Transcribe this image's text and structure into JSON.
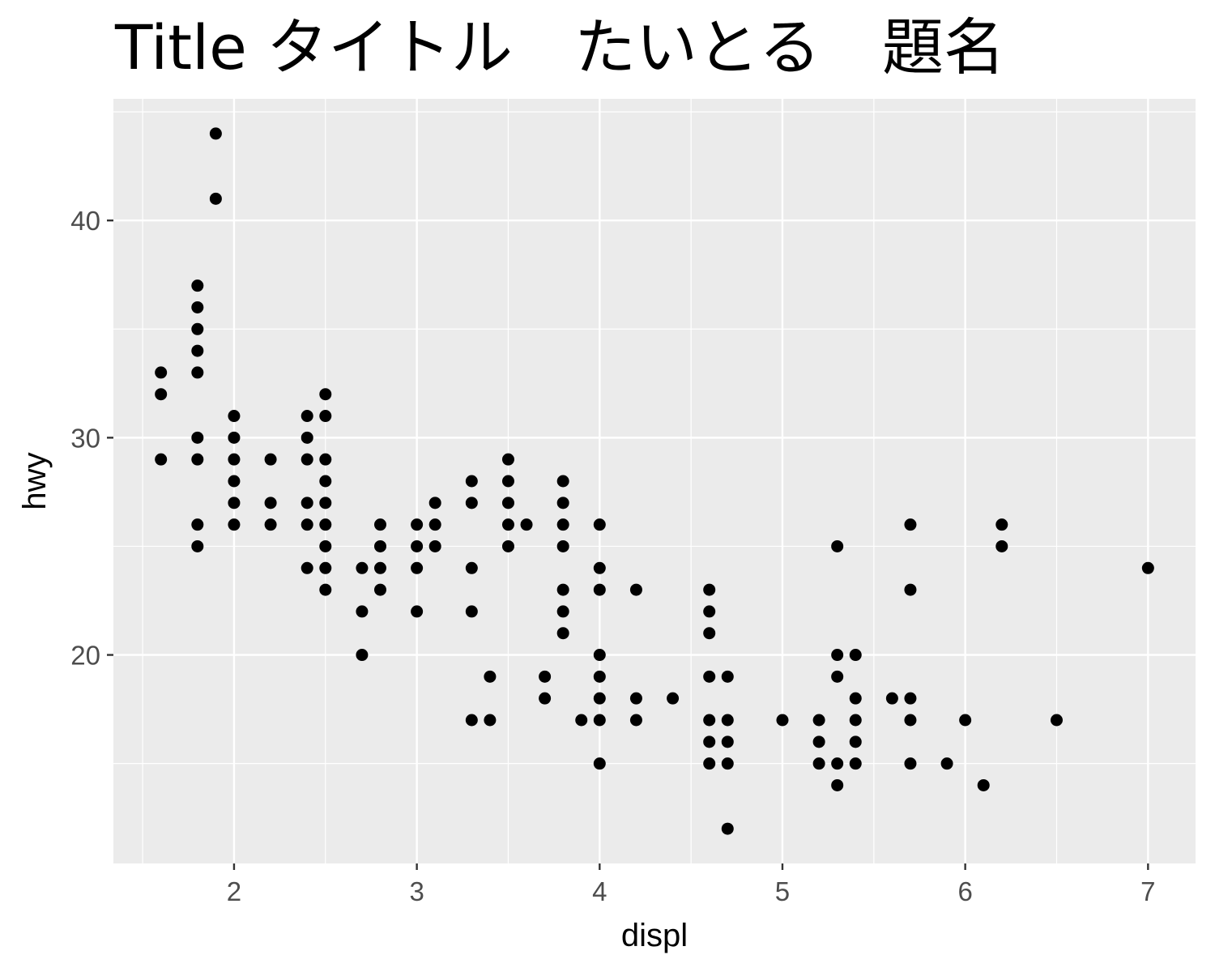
{
  "chart_data": {
    "type": "scatter",
    "title": "Title タイトル　たいとる　題名",
    "xlabel": "displ",
    "ylabel": "hwy",
    "xlim": [
      1.34,
      7.26
    ],
    "ylim": [
      10.4,
      45.6
    ],
    "x_ticks": [
      2,
      3,
      4,
      5,
      6,
      7
    ],
    "y_ticks": [
      20,
      30,
      40
    ],
    "x_tick_labels": [
      "2",
      "3",
      "4",
      "5",
      "6",
      "7"
    ],
    "y_tick_labels": [
      "20",
      "30",
      "40"
    ],
    "grid": true,
    "legend": "none",
    "colors": {
      "panel": "#ebebeb",
      "grid": "#ffffff",
      "point": "#000000",
      "tick_text": "#4d4d4d"
    },
    "points": [
      [
        1.6,
        33
      ],
      [
        1.6,
        32
      ],
      [
        1.6,
        29
      ],
      [
        1.8,
        37
      ],
      [
        1.8,
        36
      ],
      [
        1.8,
        35
      ],
      [
        1.8,
        34
      ],
      [
        1.8,
        33
      ],
      [
        1.8,
        30
      ],
      [
        1.8,
        29
      ],
      [
        1.8,
        26
      ],
      [
        1.8,
        25
      ],
      [
        1.9,
        44
      ],
      [
        1.9,
        41
      ],
      [
        2.0,
        31
      ],
      [
        2.0,
        30
      ],
      [
        2.0,
        29
      ],
      [
        2.0,
        28
      ],
      [
        2.0,
        27
      ],
      [
        2.0,
        26
      ],
      [
        2.2,
        29
      ],
      [
        2.2,
        27
      ],
      [
        2.2,
        26
      ],
      [
        2.4,
        31
      ],
      [
        2.4,
        30
      ],
      [
        2.4,
        29
      ],
      [
        2.4,
        27
      ],
      [
        2.4,
        26
      ],
      [
        2.4,
        24
      ],
      [
        2.5,
        32
      ],
      [
        2.5,
        31
      ],
      [
        2.5,
        29
      ],
      [
        2.5,
        28
      ],
      [
        2.5,
        27
      ],
      [
        2.5,
        26
      ],
      [
        2.5,
        25
      ],
      [
        2.5,
        24
      ],
      [
        2.5,
        23
      ],
      [
        2.7,
        24
      ],
      [
        2.7,
        22
      ],
      [
        2.7,
        20
      ],
      [
        2.8,
        26
      ],
      [
        2.8,
        25
      ],
      [
        2.8,
        24
      ],
      [
        2.8,
        23
      ],
      [
        3.0,
        26
      ],
      [
        3.0,
        25
      ],
      [
        3.0,
        24
      ],
      [
        3.0,
        22
      ],
      [
        3.1,
        27
      ],
      [
        3.1,
        26
      ],
      [
        3.1,
        25
      ],
      [
        3.3,
        28
      ],
      [
        3.3,
        27
      ],
      [
        3.3,
        24
      ],
      [
        3.3,
        22
      ],
      [
        3.3,
        17
      ],
      [
        3.4,
        19
      ],
      [
        3.4,
        17
      ],
      [
        3.5,
        29
      ],
      [
        3.5,
        28
      ],
      [
        3.5,
        27
      ],
      [
        3.5,
        26
      ],
      [
        3.5,
        25
      ],
      [
        3.6,
        26
      ],
      [
        3.7,
        19
      ],
      [
        3.7,
        18
      ],
      [
        3.8,
        28
      ],
      [
        3.8,
        27
      ],
      [
        3.8,
        26
      ],
      [
        3.8,
        25
      ],
      [
        3.8,
        23
      ],
      [
        3.8,
        22
      ],
      [
        3.8,
        21
      ],
      [
        3.9,
        17
      ],
      [
        4.0,
        26
      ],
      [
        4.0,
        24
      ],
      [
        4.0,
        23
      ],
      [
        4.0,
        20
      ],
      [
        4.0,
        19
      ],
      [
        4.0,
        18
      ],
      [
        4.0,
        17
      ],
      [
        4.0,
        15
      ],
      [
        4.2,
        23
      ],
      [
        4.2,
        18
      ],
      [
        4.2,
        17
      ],
      [
        4.4,
        18
      ],
      [
        4.6,
        23
      ],
      [
        4.6,
        22
      ],
      [
        4.6,
        21
      ],
      [
        4.6,
        19
      ],
      [
        4.6,
        17
      ],
      [
        4.6,
        16
      ],
      [
        4.6,
        15
      ],
      [
        4.7,
        19
      ],
      [
        4.7,
        17
      ],
      [
        4.7,
        16
      ],
      [
        4.7,
        15
      ],
      [
        4.7,
        12
      ],
      [
        5.0,
        17
      ],
      [
        5.2,
        17
      ],
      [
        5.2,
        16
      ],
      [
        5.2,
        15
      ],
      [
        5.3,
        25
      ],
      [
        5.3,
        20
      ],
      [
        5.3,
        19
      ],
      [
        5.3,
        15
      ],
      [
        5.3,
        14
      ],
      [
        5.4,
        20
      ],
      [
        5.4,
        18
      ],
      [
        5.4,
        17
      ],
      [
        5.4,
        16
      ],
      [
        5.4,
        15
      ],
      [
        5.6,
        18
      ],
      [
        5.7,
        26
      ],
      [
        5.7,
        23
      ],
      [
        5.7,
        18
      ],
      [
        5.7,
        17
      ],
      [
        5.7,
        15
      ],
      [
        5.9,
        15
      ],
      [
        6.0,
        17
      ],
      [
        6.1,
        14
      ],
      [
        6.2,
        26
      ],
      [
        6.2,
        25
      ],
      [
        6.5,
        17
      ],
      [
        7.0,
        24
      ]
    ]
  }
}
